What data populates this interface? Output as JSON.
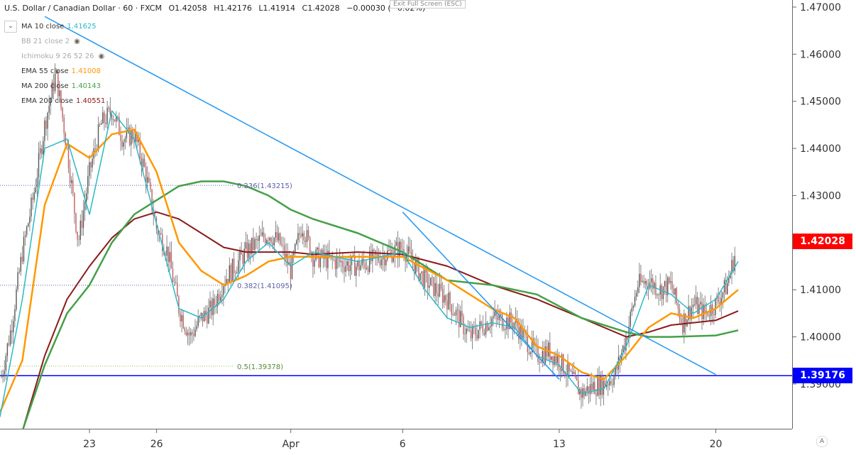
{
  "header": {
    "symbol": "U.S. Dollar / Canadian Dollar · 60 · FXCM",
    "open": "O1.42058",
    "high": "H1.42176",
    "low": "L1.41914",
    "close": "C1.42028",
    "change": "−0.00030 (−0.02%)",
    "exit_fullscreen": "Exit Full Screen (ESC)",
    "collapse_icon": "chevron-down"
  },
  "indicators": [
    {
      "name": "MA 10 close",
      "value": "1.41625",
      "color": "#2bb8c6"
    },
    {
      "name": "BB 21 close 2",
      "value": "",
      "color": "#999999",
      "hidden": true
    },
    {
      "name": "Ichimoku 9 26 52 26",
      "value": "",
      "color": "#999999",
      "hidden": true
    },
    {
      "name": "EMA 55 close",
      "value": "1.41008",
      "color": "#ff9800"
    },
    {
      "name": "MA 200 close",
      "value": "1.40143",
      "color": "#43a047"
    },
    {
      "name": "EMA 200 close",
      "value": "1.40551",
      "color": "#8b1a1a"
    }
  ],
  "colors": {
    "up": "#26a69a",
    "down": "#ef5350",
    "candle": "#555555",
    "trendline": "#2196f3",
    "support": "#0000ff",
    "last_price_bg": "#ff0000",
    "support_bg": "#0000ff",
    "ma10": "#2bb8c6",
    "ema55": "#ff9800",
    "ma200": "#43a047",
    "ema200": "#8b1a1a",
    "fib": "#5b5ea6"
  },
  "chart_data": {
    "type": "candlestick",
    "ylim": [
      1.3805,
      1.4715
    ],
    "yticks": [
      "1.39000",
      "1.40000",
      "1.41000",
      "1.42000",
      "1.43000",
      "1.44000",
      "1.45000",
      "1.46000",
      "1.47000"
    ],
    "ytick_values": [
      1.39,
      1.4,
      1.41,
      1.42,
      1.43,
      1.44,
      1.45,
      1.46,
      1.47
    ],
    "xticks": [
      "23",
      "26",
      "Apr",
      "6",
      "13",
      "20"
    ],
    "x_date_range": [
      "2020-03-19",
      "2020-04-21"
    ],
    "x_date_min": "2020-03-19",
    "x_date_max": "2020-04-21",
    "xtick_dates": [
      "2020-03-23",
      "2020-03-26",
      "2020-04-01",
      "2020-04-06",
      "2020-04-13",
      "2020-04-20"
    ],
    "last_price": "1.42028",
    "last_price_value": 1.42028,
    "support_level": "1.39176",
    "support_value": 1.39176,
    "fib_levels": [
      {
        "label": "0.236(1.43215)",
        "value": 1.43215
      },
      {
        "label": "0.382(1.41095)",
        "value": 1.41095
      },
      {
        "label": "0.5(1.39378)",
        "value": 1.39378
      }
    ],
    "close_path": [
      [
        "2020-03-19",
        1.39
      ],
      [
        "2020-03-19T12",
        1.402
      ],
      [
        "2020-03-20",
        1.418
      ],
      [
        "2020-03-20T12",
        1.43
      ],
      [
        "2020-03-21",
        1.445
      ],
      [
        "2020-03-21T12",
        1.456
      ],
      [
        "2020-03-22",
        1.44
      ],
      [
        "2020-03-22T12",
        1.42
      ],
      [
        "2020-03-23",
        1.435
      ],
      [
        "2020-03-23T12",
        1.445
      ],
      [
        "2020-03-24",
        1.448
      ],
      [
        "2020-03-24T12",
        1.442
      ],
      [
        "2020-03-25",
        1.443
      ],
      [
        "2020-03-25T12",
        1.435
      ],
      [
        "2020-03-26",
        1.423
      ],
      [
        "2020-03-26T12",
        1.418
      ],
      [
        "2020-03-27",
        1.406
      ],
      [
        "2020-03-27T12",
        1.4
      ],
      [
        "2020-03-28",
        1.404
      ],
      [
        "2020-03-28T12",
        1.406
      ],
      [
        "2020-03-29",
        1.412
      ],
      [
        "2020-03-30",
        1.418
      ],
      [
        "2020-03-31",
        1.422
      ],
      [
        "2020-03-31T12",
        1.42
      ],
      [
        "2020-04-01",
        1.414
      ],
      [
        "2020-04-01T12",
        1.424
      ],
      [
        "2020-04-02",
        1.417
      ],
      [
        "2020-04-03",
        1.416
      ],
      [
        "2020-04-04",
        1.415
      ],
      [
        "2020-04-05",
        1.417
      ],
      [
        "2020-04-06",
        1.419
      ],
      [
        "2020-04-07",
        1.412
      ],
      [
        "2020-04-08",
        1.408
      ],
      [
        "2020-04-09",
        1.4
      ],
      [
        "2020-04-10",
        1.404
      ],
      [
        "2020-04-11",
        1.403
      ],
      [
        "2020-04-12",
        1.396
      ],
      [
        "2020-04-12T12",
        1.397
      ],
      [
        "2020-04-13",
        1.395
      ],
      [
        "2020-04-14",
        1.388
      ],
      [
        "2020-04-14T12",
        1.3895
      ],
      [
        "2020-04-15",
        1.39
      ],
      [
        "2020-04-15T12",
        1.392
      ],
      [
        "2020-04-16",
        1.4
      ],
      [
        "2020-04-16T12",
        1.411
      ],
      [
        "2020-04-17",
        1.412
      ],
      [
        "2020-04-17T12",
        1.41
      ],
      [
        "2020-04-18",
        1.411
      ],
      [
        "2020-04-18T12",
        1.403
      ],
      [
        "2020-04-19",
        1.407
      ],
      [
        "2020-04-19T12",
        1.405
      ],
      [
        "2020-04-20",
        1.407
      ],
      [
        "2020-04-20T12",
        1.411
      ],
      [
        "2020-04-21",
        1.42
      ]
    ],
    "ma10": [
      [
        "2020-03-19",
        1.383
      ],
      [
        "2020-03-20",
        1.408
      ],
      [
        "2020-03-21",
        1.44
      ],
      [
        "2020-03-22",
        1.442
      ],
      [
        "2020-03-23",
        1.426
      ],
      [
        "2020-03-24",
        1.448
      ],
      [
        "2020-03-25",
        1.442
      ],
      [
        "2020-03-26",
        1.424
      ],
      [
        "2020-03-27",
        1.406
      ],
      [
        "2020-03-28",
        1.404
      ],
      [
        "2020-03-29",
        1.408
      ],
      [
        "2020-03-30",
        1.416
      ],
      [
        "2020-03-31",
        1.42
      ],
      [
        "2020-04-01",
        1.415
      ],
      [
        "2020-04-02",
        1.418
      ],
      [
        "2020-04-04",
        1.416
      ],
      [
        "2020-04-06",
        1.418
      ],
      [
        "2020-04-07",
        1.41
      ],
      [
        "2020-04-08",
        1.404
      ],
      [
        "2020-04-09",
        1.402
      ],
      [
        "2020-04-10",
        1.403
      ],
      [
        "2020-04-11",
        1.402
      ],
      [
        "2020-04-12",
        1.396
      ],
      [
        "2020-04-13",
        1.394
      ],
      [
        "2020-04-14",
        1.388
      ],
      [
        "2020-04-15",
        1.389
      ],
      [
        "2020-04-16",
        1.398
      ],
      [
        "2020-04-17",
        1.411
      ],
      [
        "2020-04-18",
        1.409
      ],
      [
        "2020-04-19",
        1.405
      ],
      [
        "2020-04-20",
        1.408
      ],
      [
        "2020-04-21",
        1.416
      ]
    ],
    "ema55": [
      [
        "2020-03-19",
        1.384
      ],
      [
        "2020-03-20",
        1.395
      ],
      [
        "2020-03-21",
        1.428
      ],
      [
        "2020-03-22",
        1.441
      ],
      [
        "2020-03-23",
        1.438
      ],
      [
        "2020-03-24",
        1.443
      ],
      [
        "2020-03-25",
        1.444
      ],
      [
        "2020-03-26",
        1.435
      ],
      [
        "2020-03-27",
        1.42
      ],
      [
        "2020-03-28",
        1.414
      ],
      [
        "2020-03-29",
        1.411
      ],
      [
        "2020-03-30",
        1.413
      ],
      [
        "2020-03-31",
        1.416
      ],
      [
        "2020-04-01",
        1.417
      ],
      [
        "2020-04-04",
        1.417
      ],
      [
        "2020-04-06",
        1.417
      ],
      [
        "2020-04-08",
        1.412
      ],
      [
        "2020-04-10",
        1.406
      ],
      [
        "2020-04-11",
        1.404
      ],
      [
        "2020-04-12",
        1.398
      ],
      [
        "2020-04-13",
        1.396
      ],
      [
        "2020-04-14",
        1.3925
      ],
      [
        "2020-04-15",
        1.391
      ],
      [
        "2020-04-16",
        1.396
      ],
      [
        "2020-04-17",
        1.402
      ],
      [
        "2020-04-18",
        1.405
      ],
      [
        "2020-04-19",
        1.404
      ],
      [
        "2020-04-20",
        1.406
      ],
      [
        "2020-04-21",
        1.41
      ]
    ],
    "ma200": [
      [
        "2020-03-20",
        1.38
      ],
      [
        "2020-03-21",
        1.394
      ],
      [
        "2020-03-22",
        1.405
      ],
      [
        "2020-03-23",
        1.411
      ],
      [
        "2020-03-24",
        1.42
      ],
      [
        "2020-03-25",
        1.426
      ],
      [
        "2020-03-26",
        1.429
      ],
      [
        "2020-03-27",
        1.432
      ],
      [
        "2020-03-28",
        1.433
      ],
      [
        "2020-03-29",
        1.433
      ],
      [
        "2020-03-30",
        1.432
      ],
      [
        "2020-03-31",
        1.43
      ],
      [
        "2020-04-01",
        1.427
      ],
      [
        "2020-04-02",
        1.425
      ],
      [
        "2020-04-04",
        1.422
      ],
      [
        "2020-04-06",
        1.418
      ],
      [
        "2020-04-08",
        1.412
      ],
      [
        "2020-04-10",
        1.411
      ],
      [
        "2020-04-12",
        1.409
      ],
      [
        "2020-04-14",
        1.404
      ],
      [
        "2020-04-16",
        1.401
      ],
      [
        "2020-04-17",
        1.4
      ],
      [
        "2020-04-18",
        1.4
      ],
      [
        "2020-04-20",
        1.4003
      ],
      [
        "2020-04-21",
        1.4014
      ]
    ],
    "ema200": [
      [
        "2020-03-20",
        1.38
      ],
      [
        "2020-03-21",
        1.396
      ],
      [
        "2020-03-22",
        1.408
      ],
      [
        "2020-03-23",
        1.415
      ],
      [
        "2020-03-24",
        1.421
      ],
      [
        "2020-03-25",
        1.425
      ],
      [
        "2020-03-26",
        1.4265
      ],
      [
        "2020-03-27",
        1.425
      ],
      [
        "2020-03-28",
        1.422
      ],
      [
        "2020-03-29",
        1.419
      ],
      [
        "2020-03-30",
        1.418
      ],
      [
        "2020-03-31",
        1.418
      ],
      [
        "2020-04-01",
        1.418
      ],
      [
        "2020-04-02",
        1.4175
      ],
      [
        "2020-04-04",
        1.418
      ],
      [
        "2020-04-06",
        1.4175
      ],
      [
        "2020-04-08",
        1.415
      ],
      [
        "2020-04-10",
        1.411
      ],
      [
        "2020-04-12",
        1.408
      ],
      [
        "2020-04-14",
        1.404
      ],
      [
        "2020-04-16",
        1.4
      ],
      [
        "2020-04-17",
        1.401
      ],
      [
        "2020-04-18",
        1.4025
      ],
      [
        "2020-04-20",
        1.4035
      ],
      [
        "2020-04-21",
        1.4055
      ]
    ],
    "trendlines": [
      {
        "from": [
          "2020-03-21",
          1.468
        ],
        "to": [
          "2020-04-20",
          1.392
        ]
      },
      {
        "from": [
          "2020-04-06",
          1.4265
        ],
        "to": [
          "2020-04-13",
          1.391
        ]
      }
    ]
  }
}
